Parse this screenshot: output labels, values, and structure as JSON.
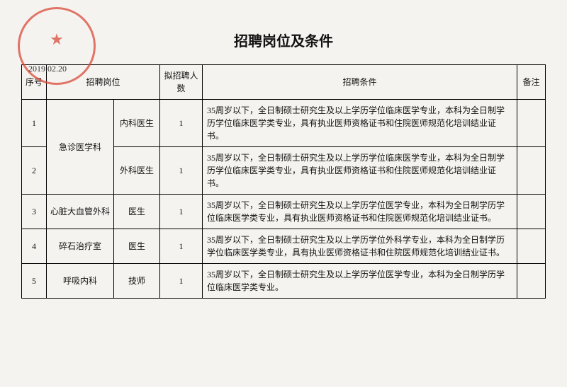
{
  "title": "招聘岗位及条件",
  "date": "2019.02.20",
  "headers": {
    "seq": "序号",
    "position": "招聘岗位",
    "count": "拟招聘人数",
    "requirement": "招聘条件",
    "note": "备注"
  },
  "rows": [
    {
      "seq": "1",
      "dept": "急诊医学科",
      "pos": "内科医生",
      "count": "1",
      "req": "35周岁以下，全日制硕士研究生及以上学历学位临床医学专业，本科为全日制学历学位临床医学类专业，具有执业医师资格证书和住院医师规范化培训结业证书。",
      "note": ""
    },
    {
      "seq": "2",
      "dept": "",
      "pos": "外科医生",
      "count": "1",
      "req": "35周岁以下，全日制硕士研究生及以上学历学位临床医学专业，本科为全日制学历学位临床医学类专业，具有执业医师资格证书和住院医师规范化培训结业证书。",
      "note": ""
    },
    {
      "seq": "3",
      "dept": "心脏大血管外科",
      "pos": "医生",
      "count": "1",
      "req": "35周岁以下，全日制硕士研究生及以上学历学位医学专业，本科为全日制学历学位临床医学类专业，具有执业医师资格证书和住院医师规范化培训结业证书。",
      "note": ""
    },
    {
      "seq": "4",
      "dept": "碎石治疗室",
      "pos": "医生",
      "count": "1",
      "req": "35周岁以下，全日制硕士研究生及以上学历学位外科学专业，本科为全日制学历学位临床医学类专业，具有执业医师资格证书和住院医师规范化培训结业证书。",
      "note": ""
    },
    {
      "seq": "5",
      "dept": "呼吸内科",
      "pos": "技师",
      "count": "1",
      "req": "35周岁以下，全日制硕士研究生及以上学历学位医学专业，本科为全日制学历学位临床医学类专业。",
      "note": ""
    }
  ],
  "colors": {
    "stamp": "#d94a3a",
    "background": "#f5f3ef",
    "border": "#000000",
    "text": "#111111"
  }
}
